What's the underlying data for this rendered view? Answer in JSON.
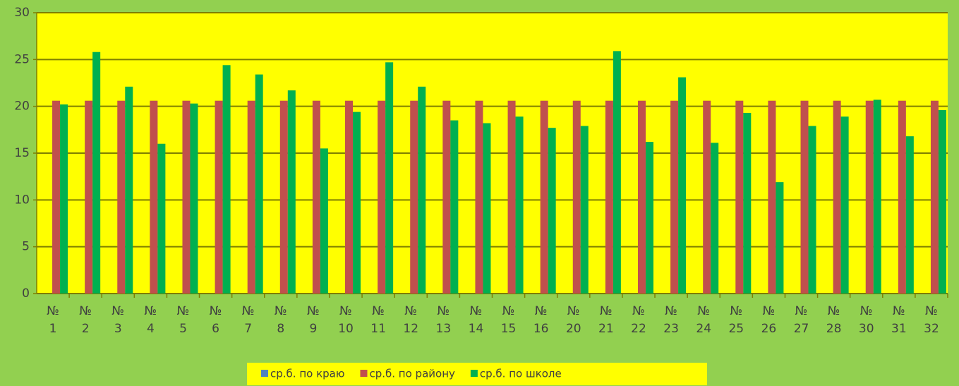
{
  "chart_data": {
    "type": "bar",
    "categories": [
      "№ 1",
      "№ 2",
      "№ 3",
      "№ 4",
      "№ 5",
      "№ 6",
      "№ 7",
      "№ 8",
      "№ 9",
      "№ 10",
      "№ 11",
      "№ 12",
      "№ 13",
      "№ 14",
      "№ 15",
      "№ 16",
      "№ 20",
      "№ 21",
      "№ 22",
      "№ 23",
      "№ 24",
      "№ 25",
      "№ 26",
      "№ 27",
      "№ 28",
      "№ 30",
      "№ 31",
      "№ 32"
    ],
    "series": [
      {
        "name": "ср.б. по краю",
        "color": "#4f81bd",
        "values": [
          null,
          null,
          null,
          null,
          null,
          null,
          null,
          null,
          null,
          null,
          null,
          null,
          null,
          null,
          null,
          null,
          null,
          null,
          null,
          null,
          null,
          null,
          null,
          null,
          null,
          null,
          null,
          null
        ]
      },
      {
        "name": "ср.б. по району",
        "color": "#c0504d",
        "values": [
          20.6,
          20.6,
          20.6,
          20.6,
          20.6,
          20.6,
          20.6,
          20.6,
          20.6,
          20.6,
          20.6,
          20.6,
          20.6,
          20.6,
          20.6,
          20.6,
          20.6,
          20.6,
          20.6,
          20.6,
          20.6,
          20.6,
          20.6,
          20.6,
          20.6,
          20.6,
          20.6,
          20.6
        ]
      },
      {
        "name": "ср.б. по школе",
        "color": "#00b050",
        "values": [
          20.2,
          25.8,
          22.1,
          16.0,
          20.3,
          24.4,
          23.4,
          21.7,
          15.5,
          19.4,
          24.7,
          22.1,
          18.5,
          18.2,
          18.9,
          17.7,
          17.9,
          25.9,
          16.2,
          23.1,
          16.1,
          19.3,
          11.9,
          17.9,
          18.9,
          20.7,
          16.8,
          19.6
        ]
      }
    ],
    "ylim": [
      0,
      30
    ],
    "yticks": [
      0,
      5,
      10,
      15,
      20,
      25,
      30
    ],
    "grid": true,
    "legend": "bottom"
  }
}
